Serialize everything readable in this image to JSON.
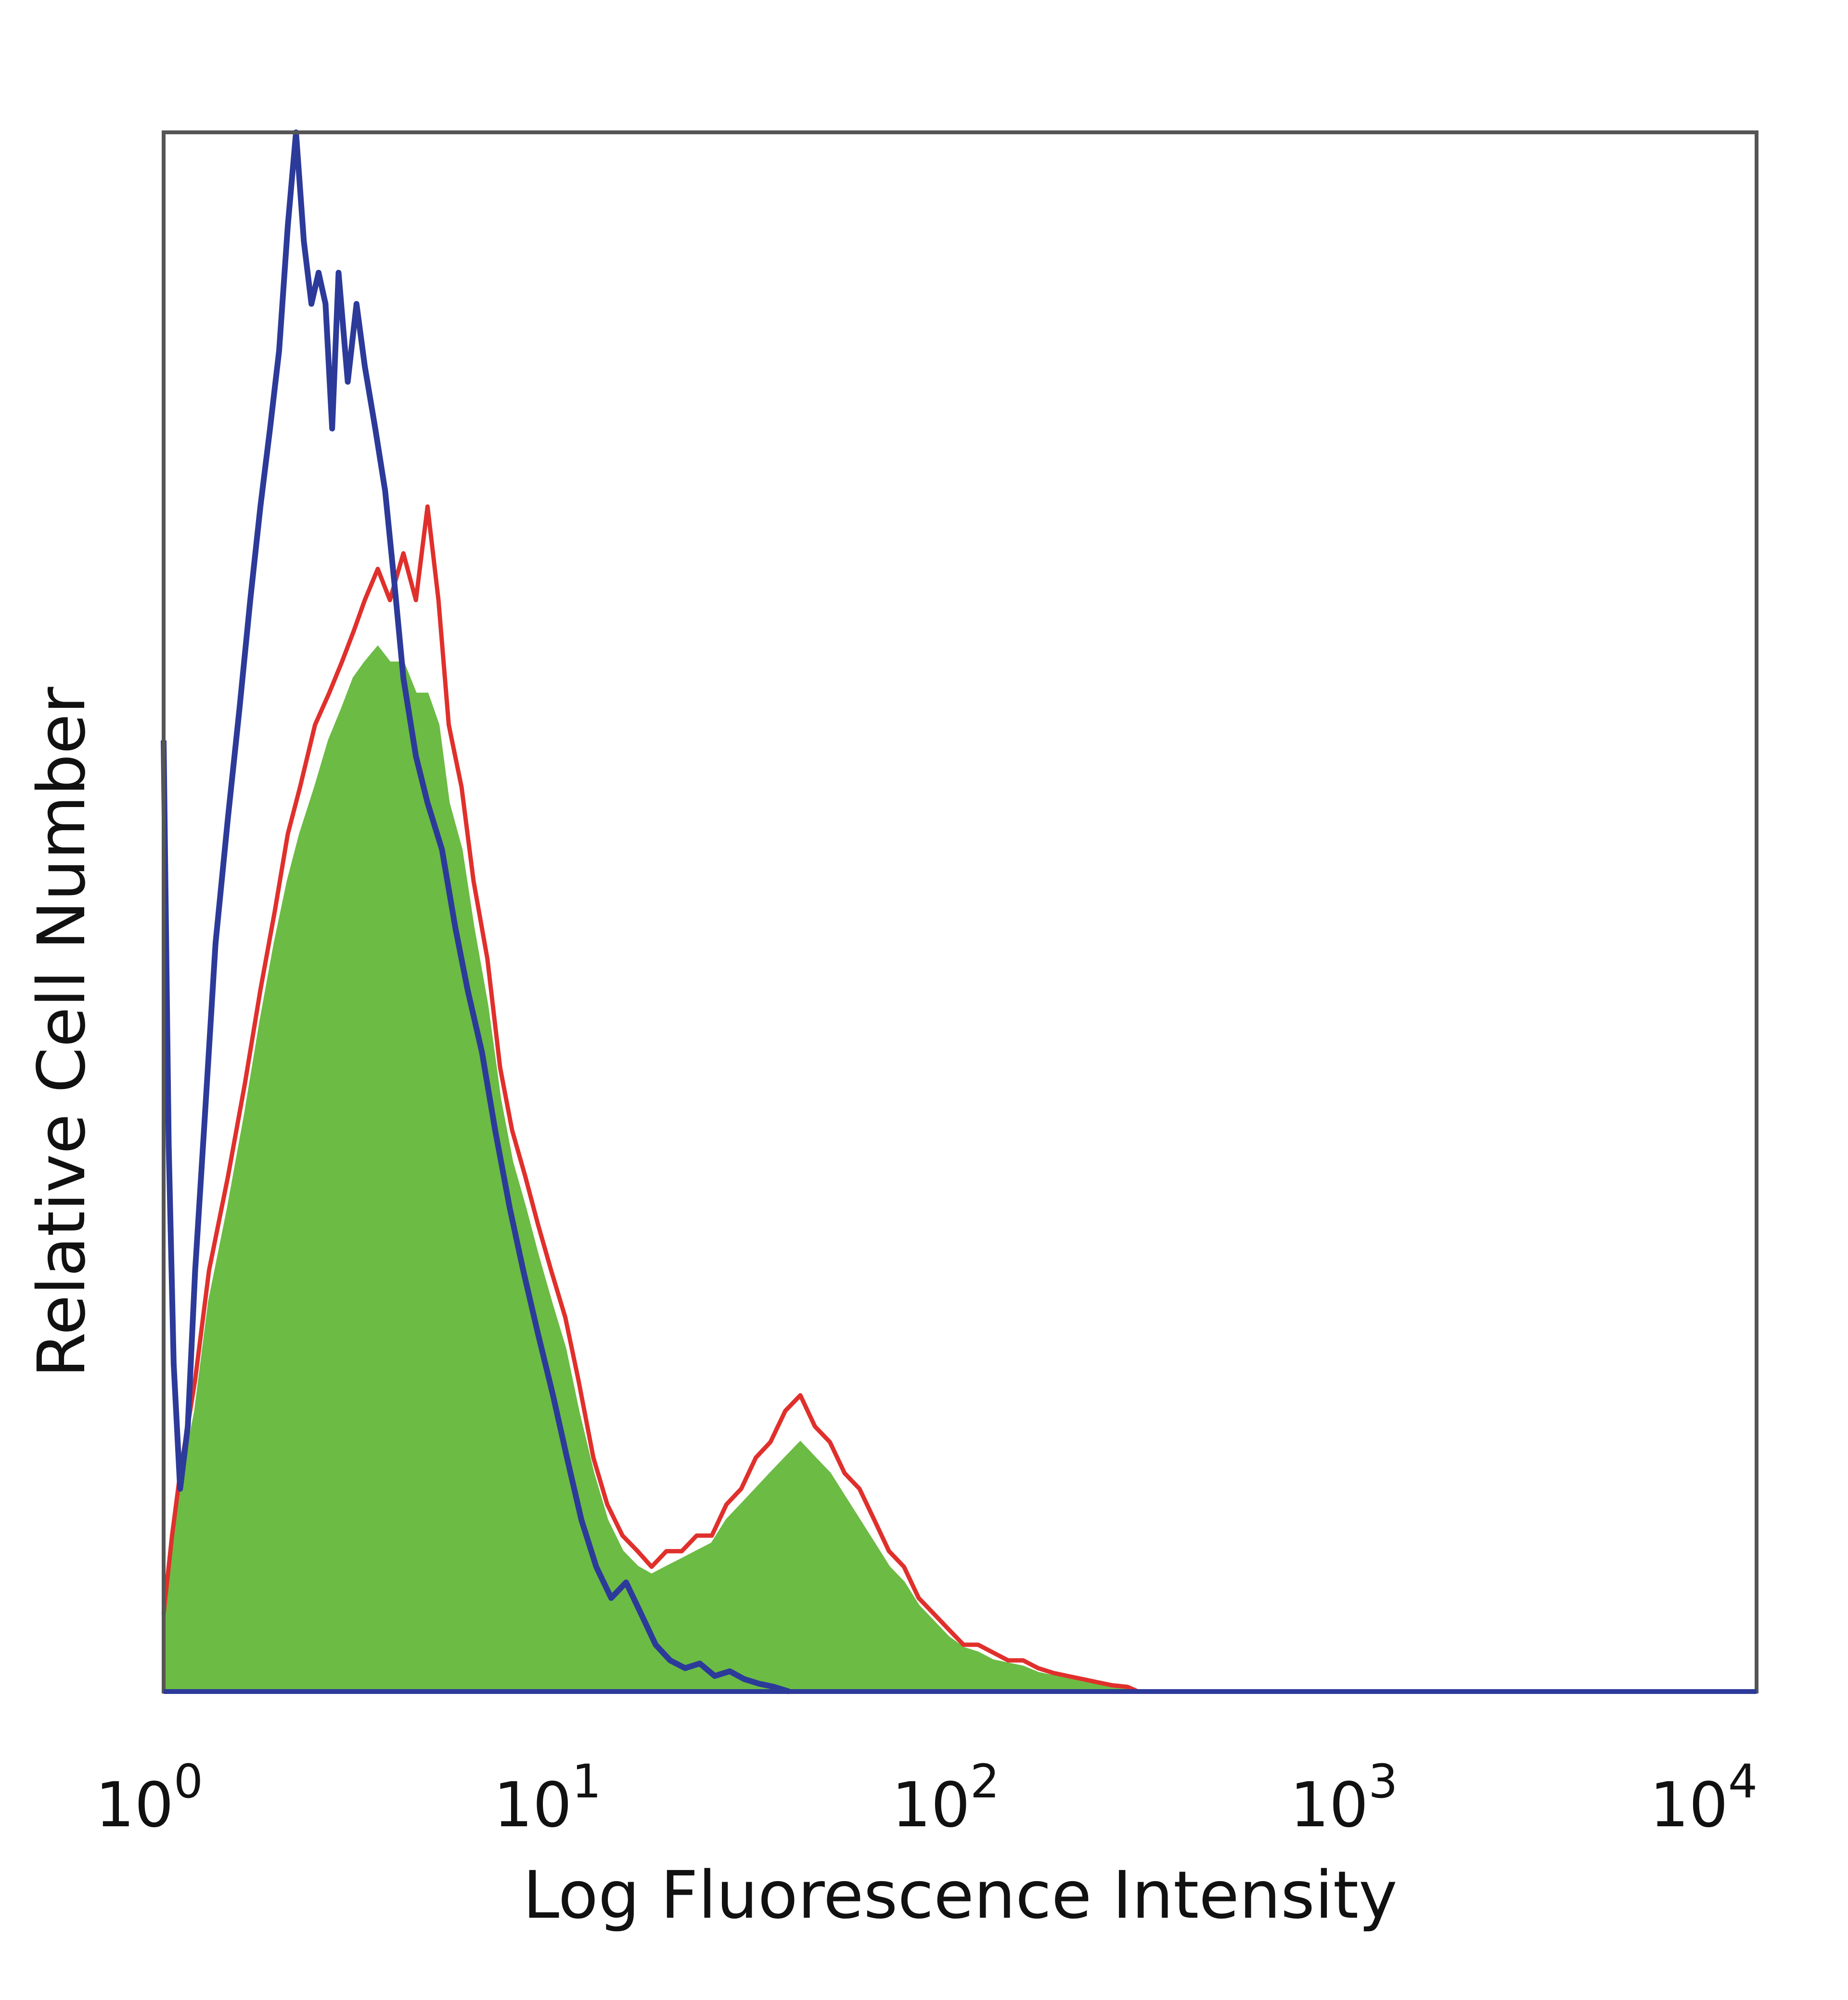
{
  "chart_data": {
    "type": "area",
    "xlabel": "Log Fluorescence Intensity",
    "ylabel": "Relative Cell Number",
    "x_scale": "log",
    "xlim": [
      1,
      10000
    ],
    "ylim": [
      0,
      100
    ],
    "grid": false,
    "x_ticks": [
      {
        "base": "10",
        "exp": "0",
        "value": 1
      },
      {
        "base": "10",
        "exp": "1",
        "value": 10
      },
      {
        "base": "10",
        "exp": "2",
        "value": 100
      },
      {
        "base": "10",
        "exp": "3",
        "value": 1000
      },
      {
        "base": "10",
        "exp": "4",
        "value": 10000
      }
    ],
    "colors": {
      "blue": "#2c3a9a",
      "red": "#e0302c",
      "green": "#6cbb44",
      "frame": "#555555"
    },
    "series": [
      {
        "style": "outline",
        "color": "#2c3a9a",
        "x": [
          1.0,
          1.03,
          1.06,
          1.1,
          1.15,
          1.2,
          1.27,
          1.35,
          1.45,
          1.55,
          1.65,
          1.75,
          1.85,
          1.95,
          2.05,
          2.15,
          2.25,
          2.35,
          2.45,
          2.55,
          2.65,
          2.75,
          2.9,
          3.05,
          3.2,
          3.4,
          3.6,
          3.8,
          4.0,
          4.3,
          4.6,
          5.0,
          5.4,
          5.8,
          6.3,
          6.8,
          7.4,
          8.0,
          8.7,
          9.5,
          10.3,
          11.2,
          12.2,
          13.3,
          14.5,
          15.8,
          17.2,
          18.7,
          20.4,
          22.2,
          24.2,
          26.4,
          28.7,
          31.3,
          34.1,
          37.2
        ],
        "values": [
          61.0,
          35.0,
          21.0,
          13.0,
          17.0,
          27.0,
          37.0,
          48.0,
          56.0,
          63.0,
          70.0,
          76.0,
          81.0,
          86.0,
          94.0,
          100.0,
          93.0,
          89.0,
          91.0,
          89.0,
          81.0,
          91.0,
          84.0,
          89.0,
          85.0,
          81.0,
          77.0,
          71.0,
          65.0,
          60.0,
          57.0,
          54.0,
          49.0,
          45.0,
          41.0,
          36.0,
          31.0,
          27.0,
          23.0,
          19.0,
          15.0,
          11.0,
          8.0,
          6.0,
          7.0,
          5.0,
          3.0,
          2.0,
          1.5,
          1.8,
          1.0,
          1.3,
          0.8,
          0.5,
          0.3,
          0.0
        ]
      },
      {
        "style": "outline",
        "color": "#e0302c",
        "x": [
          1.0,
          1.05,
          1.1,
          1.2,
          1.3,
          1.45,
          1.6,
          1.75,
          1.9,
          2.05,
          2.2,
          2.4,
          2.6,
          2.8,
          3.0,
          3.2,
          3.45,
          3.7,
          4.0,
          4.3,
          4.6,
          4.9,
          5.2,
          5.6,
          6.0,
          6.5,
          7.0,
          7.5,
          8.1,
          8.7,
          9.4,
          10.2,
          11.0,
          12.0,
          13.0,
          14.2,
          15.5,
          16.8,
          18.3,
          20.0,
          21.8,
          23.8,
          25.9,
          28.2,
          30.7,
          33.4,
          36.4,
          39.7,
          43.2,
          47.1,
          51.3,
          55.9,
          60.9,
          66.3,
          72.3,
          78.7,
          85.8,
          93.5,
          102.0,
          111.0,
          121.0,
          132.0,
          144.0,
          157.0,
          171.0,
          186.0,
          203.0,
          221.0,
          241.0,
          263.0,
          280.0
        ],
        "values": [
          5.0,
          10.0,
          14.0,
          20.0,
          27.0,
          33.0,
          39.0,
          45.0,
          50.0,
          55.0,
          58.0,
          62.0,
          64.0,
          66.0,
          68.0,
          70.0,
          72.0,
          70.0,
          73.0,
          70.0,
          76.0,
          70.0,
          62.0,
          58.0,
          52.0,
          47.0,
          40.0,
          36.0,
          33.0,
          30.0,
          27.0,
          24.0,
          20.0,
          15.0,
          12.0,
          10.0,
          9.0,
          8.0,
          9.0,
          9.0,
          10.0,
          10.0,
          12.0,
          13.0,
          15.0,
          16.0,
          18.0,
          19.0,
          17.0,
          16.0,
          14.0,
          13.0,
          11.0,
          9.0,
          8.0,
          6.0,
          5.0,
          4.0,
          3.0,
          3.0,
          2.5,
          2.0,
          2.0,
          1.5,
          1.2,
          1.0,
          0.8,
          0.6,
          0.4,
          0.3,
          0.0
        ]
      },
      {
        "style": "filled",
        "color": "#6cbb44",
        "x": [
          1.0,
          1.05,
          1.1,
          1.2,
          1.3,
          1.45,
          1.6,
          1.75,
          1.9,
          2.05,
          2.2,
          2.4,
          2.6,
          2.8,
          3.0,
          3.2,
          3.45,
          3.7,
          4.0,
          4.3,
          4.6,
          4.9,
          5.2,
          5.6,
          6.0,
          6.5,
          7.0,
          7.5,
          8.1,
          8.7,
          9.4,
          10.2,
          11.0,
          12.0,
          13.0,
          14.2,
          15.5,
          16.8,
          18.3,
          20.0,
          21.8,
          23.8,
          25.9,
          28.2,
          30.7,
          33.4,
          36.4,
          39.7,
          43.2,
          47.1,
          51.3,
          55.9,
          60.9,
          66.3,
          72.3,
          78.7,
          85.8,
          93.5,
          102.0,
          111.0,
          121.0,
          132.0,
          144.0,
          157.0,
          171.0,
          186.0,
          203.0,
          221.0,
          241.0,
          263.0,
          280.0
        ],
        "values": [
          4.0,
          9.0,
          13.0,
          18.0,
          25.0,
          31.0,
          37.0,
          43.0,
          48.0,
          52.0,
          55.0,
          58.0,
          61.0,
          63.0,
          65.0,
          66.0,
          67.0,
          66.0,
          66.0,
          64.0,
          64.0,
          62.0,
          57.0,
          54.0,
          49.0,
          44.0,
          38.0,
          34.0,
          31.0,
          28.0,
          25.0,
          22.0,
          18.0,
          14.0,
          11.0,
          9.0,
          8.0,
          7.5,
          8.0,
          8.5,
          9.0,
          9.5,
          11.0,
          12.0,
          13.0,
          14.0,
          15.0,
          16.0,
          15.0,
          14.0,
          12.5,
          11.0,
          9.5,
          8.0,
          7.0,
          5.5,
          4.5,
          3.5,
          2.8,
          2.5,
          2.0,
          1.8,
          1.6,
          1.2,
          1.0,
          0.8,
          0.6,
          0.5,
          0.3,
          0.2,
          0.0
        ]
      }
    ]
  }
}
